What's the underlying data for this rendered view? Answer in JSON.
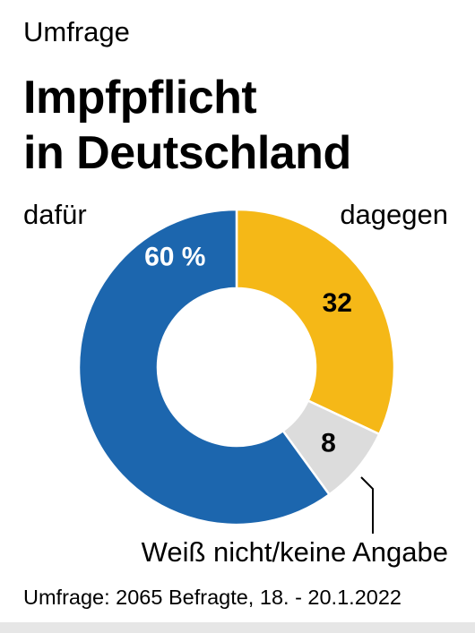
{
  "header": {
    "kicker": "Umfrage",
    "title_line1": "Impfpflicht",
    "title_line2": "in Deutschland"
  },
  "labels": {
    "left": "dafür",
    "right": "dagegen",
    "note": "Weiß nicht/keine Angabe"
  },
  "source": "Umfrage: 2065 Befragte, 18. - 20.1.2022",
  "colors": {
    "dafuer": "#1c66ae",
    "dagegen": "#f5b817",
    "weiss_nicht": "#dcdcdc"
  },
  "chart_data": {
    "type": "pie",
    "style": "donut",
    "title": "Impfpflicht in Deutschland",
    "slices": [
      {
        "name": "dagegen",
        "value": 32,
        "label": "32",
        "color": "#f5b817",
        "text_color": "#000000"
      },
      {
        "name": "Weiß nicht/keine Angabe",
        "value": 8,
        "label": "8",
        "color": "#dcdcdc",
        "text_color": "#000000"
      },
      {
        "name": "dafür",
        "value": 60,
        "label": "60 %",
        "color": "#1c66ae",
        "text_color": "#ffffff"
      }
    ]
  }
}
